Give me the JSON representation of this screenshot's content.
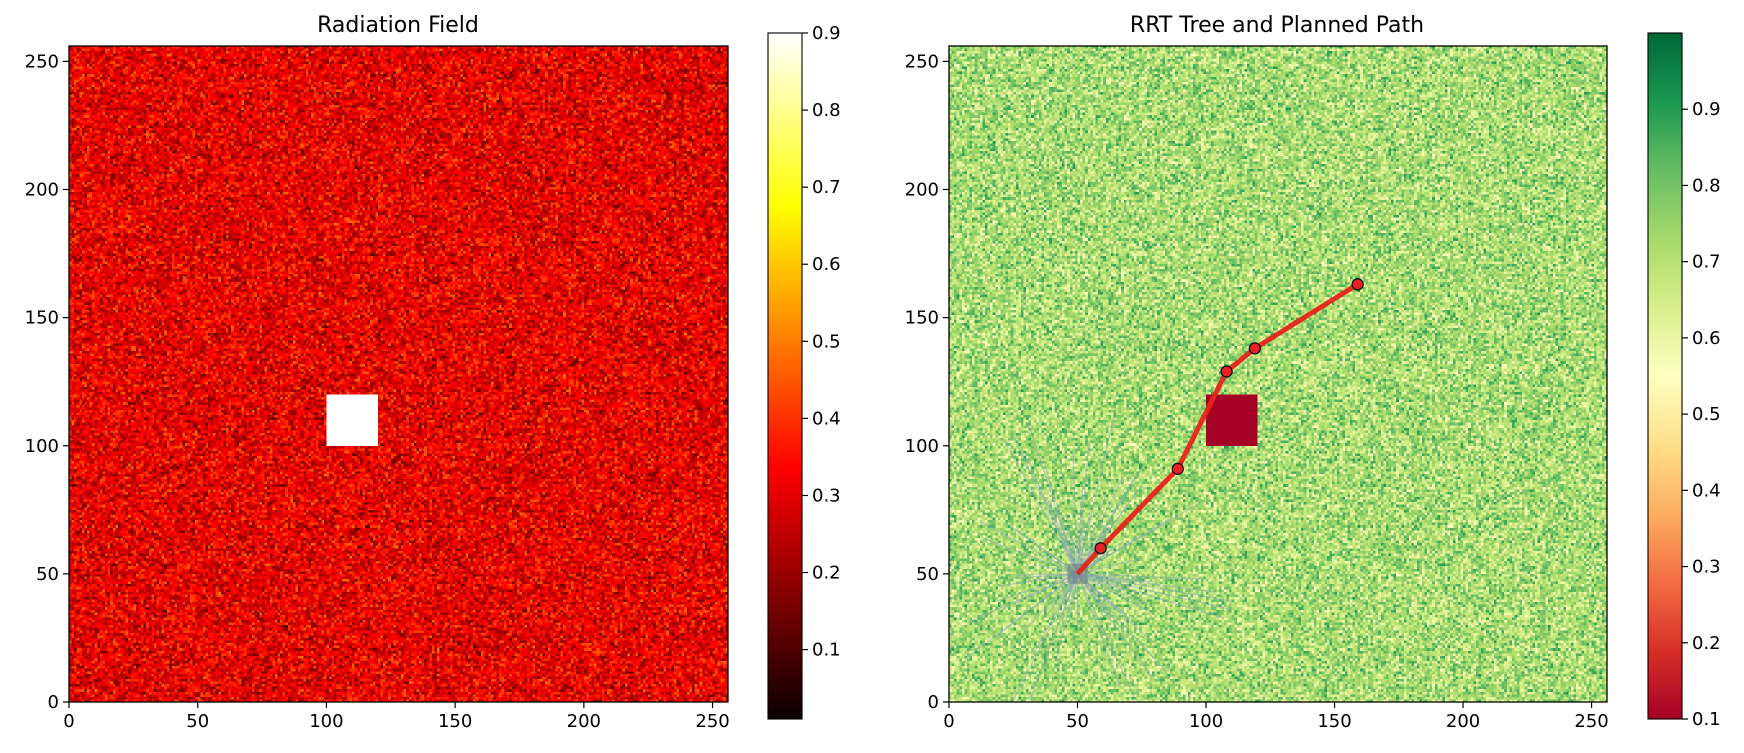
{
  "chart_data": [
    {
      "type": "heatmap",
      "title": "Radiation Field",
      "xlim": [
        0,
        256
      ],
      "ylim": [
        0,
        256
      ],
      "x_ticks": [
        "0",
        "50",
        "100",
        "150",
        "200",
        "250"
      ],
      "y_ticks": [
        "0",
        "50",
        "100",
        "150",
        "200",
        "250"
      ],
      "colormap": "hot",
      "colorbar": {
        "range": [
          0.01,
          0.9
        ],
        "ticks": [
          "0.1",
          "0.2",
          "0.3",
          "0.4",
          "0.5",
          "0.6",
          "0.7",
          "0.8",
          "0.9"
        ]
      },
      "background_level": 0.3,
      "background_spread": 0.12,
      "hotspot": {
        "x": [
          100,
          120
        ],
        "y": [
          100,
          120
        ],
        "value": 0.9
      }
    },
    {
      "type": "heatmap",
      "title": "RRT Tree and Planned Path",
      "xlim": [
        0,
        256
      ],
      "ylim": [
        0,
        256
      ],
      "x_ticks": [
        "0",
        "50",
        "100",
        "150",
        "200",
        "250"
      ],
      "y_ticks": [
        "0",
        "50",
        "100",
        "150",
        "200",
        "250"
      ],
      "colormap": "RdYlGn",
      "colorbar": {
        "range": [
          0.1,
          1.0
        ],
        "ticks": [
          "0.1",
          "0.2",
          "0.3",
          "0.4",
          "0.5",
          "0.6",
          "0.7",
          "0.8",
          "0.9"
        ]
      },
      "background_level": 0.72,
      "background_spread": 0.12,
      "obstacle": {
        "x": [
          100,
          120
        ],
        "y": [
          100,
          120
        ],
        "value": 0.1
      },
      "tree_root": {
        "x": 50,
        "y": 50
      },
      "path": [
        {
          "x": 50,
          "y": 50
        },
        {
          "x": 59,
          "y": 60
        },
        {
          "x": 89,
          "y": 91
        },
        {
          "x": 108,
          "y": 129
        },
        {
          "x": 119,
          "y": 138
        },
        {
          "x": 159,
          "y": 163
        }
      ],
      "colors": {
        "path": "#e8231a",
        "waypoint": "#e82222",
        "tree": "#8aa6c2"
      }
    }
  ]
}
